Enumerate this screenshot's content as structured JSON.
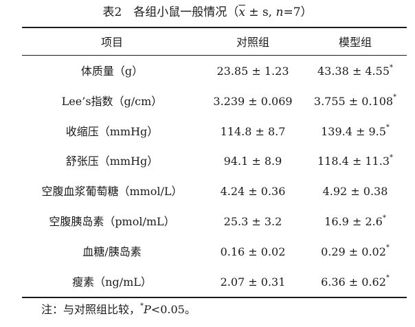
{
  "caption": {
    "prefix": "表2　各组小鼠一般情况（",
    "xbar": "x",
    "pm_s": " ± s, ",
    "n_label": "n",
    "n_value": "=7",
    "suffix": "）"
  },
  "table": {
    "headers": [
      "项目",
      "对照组",
      "模型组"
    ],
    "rows": [
      {
        "item": "体质量（g）",
        "control": "23.85 ± 1.23",
        "model": "43.38 ± 4.55",
        "model_star": "*"
      },
      {
        "item": "Lee’s指数（g/cm）",
        "control": "3.239 ± 0.069",
        "model": "3.755 ± 0.108",
        "model_star": "*"
      },
      {
        "item": "收缩压（mmHg）",
        "control": "114.8 ± 8.7",
        "model": "139.4 ± 9.5",
        "model_star": "*"
      },
      {
        "item": "舒张压（mmHg）",
        "control": "94.1 ± 8.9",
        "model": "118.4 ± 11.3",
        "model_star": "*"
      },
      {
        "item": "空腹血浆葡萄糖（mmol/L）",
        "control": "4.24 ± 0.36",
        "model": "4.92 ± 0.38",
        "model_star": ""
      },
      {
        "item": "空腹胰岛素（pmol/mL）",
        "control": "25.3 ± 3.2",
        "model": "16.9 ± 2.6",
        "model_star": "*"
      },
      {
        "item": "血糖/胰岛素",
        "control": "0.16 ± 0.02",
        "model": "0.29 ± 0.02",
        "model_star": "*"
      },
      {
        "item": "瘦素（ng/mL）",
        "control": "2.07 ± 0.31",
        "model": "6.36 ± 0.62",
        "model_star": "*"
      }
    ]
  },
  "note": {
    "prefix": "注：与对照组比较，",
    "star": "*",
    "p_label": "P",
    "p_rest": "<0.05。"
  }
}
